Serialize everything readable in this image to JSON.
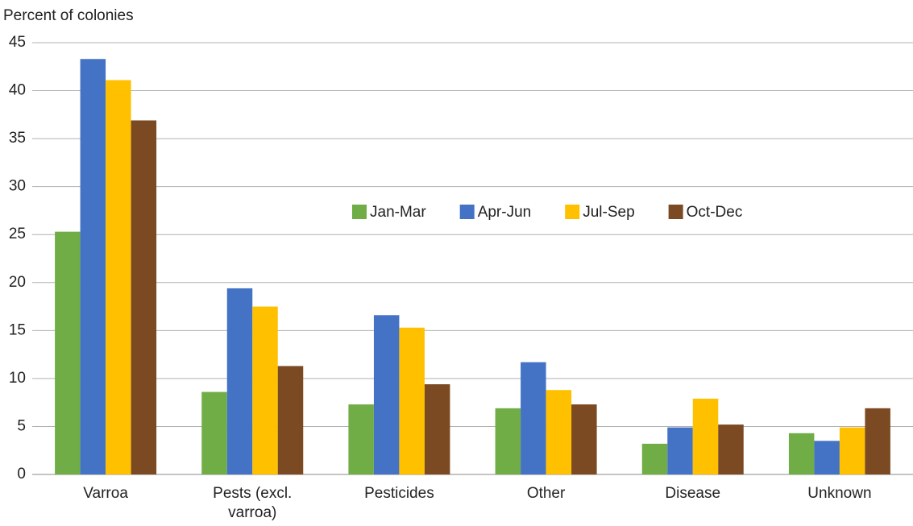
{
  "chart_data": {
    "type": "bar",
    "y_axis_label": "Percent of colonies",
    "categories": [
      "Varroa",
      "Pests (excl. varroa)",
      "Pesticides",
      "Other",
      "Disease",
      "Unknown"
    ],
    "series": [
      {
        "name": "Jan-Mar",
        "color": "#70ad47",
        "values": [
          25.3,
          8.6,
          7.3,
          6.9,
          3.2,
          4.3
        ]
      },
      {
        "name": "Apr-Jun",
        "color": "#4472c4",
        "values": [
          43.3,
          19.4,
          16.6,
          11.7,
          4.9,
          3.5
        ]
      },
      {
        "name": "Jul-Sep",
        "color": "#ffc000",
        "values": [
          41.1,
          17.5,
          15.3,
          8.8,
          7.9,
          4.9
        ]
      },
      {
        "name": "Oct-Dec",
        "color": "#7b4a23",
        "values": [
          36.9,
          11.3,
          9.4,
          7.3,
          5.2,
          6.9
        ]
      }
    ],
    "ylim": [
      0,
      45
    ],
    "yticks": [
      0,
      5,
      10,
      15,
      20,
      25,
      30,
      35,
      40,
      45
    ],
    "grid": true
  }
}
